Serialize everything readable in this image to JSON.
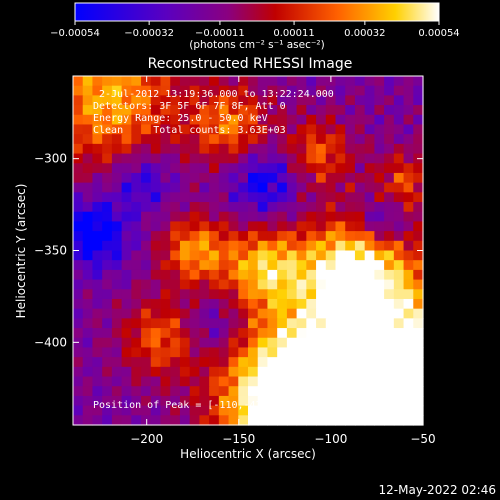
{
  "chart_data": {
    "type": "heatmap",
    "title": "Reconstructed RHESSI Image",
    "xlabel": "Heliocentric X (arcsec)",
    "ylabel": "Heliocentric Y (arcsec)",
    "xlim": [
      -240,
      -50
    ],
    "ylim": [
      -445,
      -255
    ],
    "x_ticks": [
      -200,
      -150,
      -100,
      -50
    ],
    "x_tick_labels": [
      "−200",
      "−150",
      "−100",
      "−50"
    ],
    "y_ticks": [
      -300,
      -350,
      -400
    ],
    "y_tick_labels": [
      "−300",
      "−350",
      "−400"
    ],
    "colorbar": {
      "range": [
        -0.00054,
        0.00054
      ],
      "ticks": [
        -0.00054,
        -0.00032,
        -0.00011,
        0.00011,
        0.00032,
        0.00054
      ],
      "tick_labels": [
        "−0.00054",
        "−0.00032",
        "−0.00011",
        "0.00011",
        "0.00032",
        "0.00054"
      ],
      "unit_label": "(photons cm⁻² s⁻¹ asec⁻²)",
      "colors": [
        "#0000ff",
        "#5a00c0",
        "#8a0080",
        "#c00000",
        "#ff6000",
        "#ffd000",
        "#ffffff"
      ]
    },
    "annotations": [
      "2-Jul-2012 13:19:36.000 to 13:22:24.000",
      "Detectors: 3F 5F 6F 7F 8F, Att 0",
      "Energy Range: 25.0 - 50.0 keV",
      "Clean     Total counts: 3.63E+03"
    ],
    "peak_label": "Position of Peak = [-110,-427]",
    "peak": [
      -110,
      -427
    ]
  },
  "footer": {
    "date": "12-May-2022 02:46"
  }
}
